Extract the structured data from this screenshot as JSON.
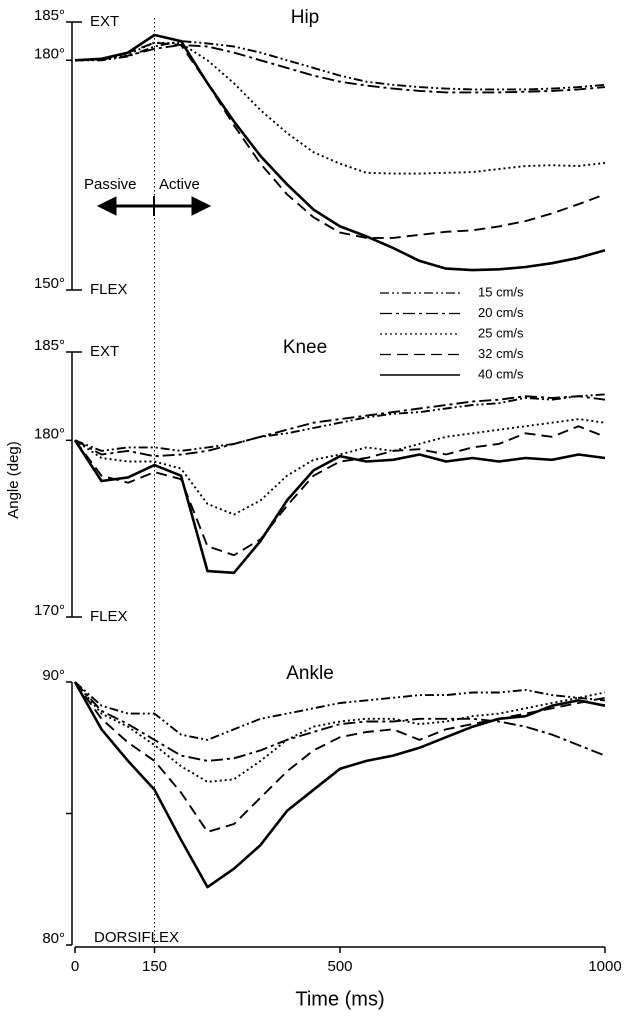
{
  "vline": 150,
  "chart_data": [
    {
      "type": "line",
      "title": "Hip",
      "top_label": "EXT",
      "bottom_label": "FLEX",
      "annotations": [
        "Passive",
        "Active"
      ],
      "x": [
        0,
        50,
        100,
        150,
        200,
        250,
        300,
        350,
        400,
        450,
        500,
        550,
        600,
        650,
        700,
        750,
        800,
        850,
        900,
        950,
        1000
      ],
      "xlim": [
        0,
        1000
      ],
      "ylim": [
        150,
        185
      ],
      "yticks": [
        {
          "value": 150,
          "label": "150°"
        },
        {
          "value": 180,
          "label": "180°"
        },
        {
          "value": 185,
          "label": "185°"
        }
      ],
      "series": [
        {
          "name": "15 cm/s",
          "color": "#000",
          "dash": "9 3 2 3 2 3",
          "values": [
            180,
            180,
            180.5,
            181.8,
            182.5,
            182.2,
            181.8,
            181,
            180,
            179,
            178,
            177.2,
            176.8,
            176.5,
            176.3,
            176.2,
            176.2,
            176.2,
            176.3,
            176.5,
            176.8
          ]
        },
        {
          "name": "20 cm/s",
          "color": "#000",
          "dash": "12 4 3 4",
          "values": [
            180,
            180.1,
            180.6,
            181.5,
            182,
            181.8,
            181,
            180,
            179,
            178,
            177.2,
            176.7,
            176.3,
            176,
            175.8,
            175.8,
            175.8,
            175.9,
            176,
            176.2,
            176.5
          ]
        },
        {
          "name": "25 cm/s",
          "color": "#000",
          "dash": "2 3",
          "values": [
            180,
            180.1,
            180.8,
            182.3,
            182.2,
            180,
            177,
            173.5,
            170.5,
            168,
            166.5,
            165.3,
            165.2,
            165.2,
            165.3,
            165.4,
            165.8,
            166.2,
            166.3,
            166.2,
            166.6
          ]
        },
        {
          "name": "32 cm/s",
          "color": "#000",
          "dash": "11 6",
          "values": [
            180,
            180.2,
            181,
            182.3,
            182,
            177,
            171.5,
            166.5,
            162.5,
            159.5,
            157.5,
            156.8,
            156.8,
            157.2,
            157.6,
            157.8,
            158.3,
            159,
            160,
            161.2,
            162.5
          ]
        },
        {
          "name": "40 cm/s",
          "color": "#000",
          "dash": "none",
          "values": [
            180,
            180.2,
            181,
            183.3,
            182.5,
            177,
            172,
            167.5,
            163.8,
            160.5,
            158.3,
            157,
            155.5,
            153.8,
            152.8,
            152.6,
            152.7,
            153,
            153.5,
            154.2,
            155.2
          ]
        }
      ]
    },
    {
      "type": "line",
      "title": "Knee",
      "top_label": "EXT",
      "bottom_label": "FLEX",
      "ylabel": "Angle (deg)",
      "x": [
        0,
        50,
        100,
        150,
        200,
        250,
        300,
        350,
        400,
        450,
        500,
        550,
        600,
        650,
        700,
        750,
        800,
        850,
        900,
        950,
        1000
      ],
      "xlim": [
        0,
        1000
      ],
      "ylim": [
        170,
        185
      ],
      "yticks": [
        {
          "value": 170,
          "label": "170°"
        },
        {
          "value": 180,
          "label": "180°"
        },
        {
          "value": 185,
          "label": "185°"
        }
      ],
      "series": [
        {
          "color": "#000",
          "dash": "9 3 2 3 2 3",
          "values": [
            180,
            179.4,
            179.6,
            179.6,
            179.4,
            179.6,
            179.8,
            180.2,
            180.4,
            180.7,
            181,
            181.3,
            181.5,
            181.6,
            181.8,
            182,
            182.1,
            182.4,
            182.3,
            182.5,
            182.6
          ]
        },
        {
          "color": "#000",
          "dash": "12 4 3 4",
          "values": [
            180,
            179.2,
            179.4,
            179.1,
            179.2,
            179.4,
            179.8,
            180.2,
            180.6,
            181,
            181.2,
            181.4,
            181.6,
            181.8,
            182,
            182.2,
            182.3,
            182.5,
            182.4,
            182.5,
            182.3
          ]
        },
        {
          "color": "#000",
          "dash": "2 3",
          "values": [
            180,
            179,
            178.8,
            178.8,
            178.4,
            176.4,
            175.8,
            176.6,
            178,
            178.9,
            179.2,
            179.6,
            179.4,
            179.8,
            180.2,
            180.4,
            180.6,
            180.8,
            181,
            181.2,
            181
          ]
        },
        {
          "color": "#000",
          "dash": "11 6",
          "values": [
            180,
            178,
            177.6,
            178.2,
            177.8,
            174,
            173.5,
            174.4,
            176.3,
            178,
            178.8,
            179,
            179.4,
            179.5,
            179.2,
            179.6,
            179.8,
            180.4,
            180.2,
            180.8,
            180.2
          ]
        },
        {
          "color": "#000",
          "dash": "none",
          "values": [
            180,
            177.7,
            177.9,
            178.6,
            178,
            172.6,
            172.5,
            174.3,
            176.6,
            178.3,
            179.1,
            178.8,
            178.9,
            179.2,
            178.8,
            179,
            178.8,
            179,
            178.9,
            179.2,
            179
          ]
        }
      ]
    },
    {
      "type": "line",
      "title": "Ankle",
      "bottom_label": "DORSIFLEX",
      "xlabel": "Time (ms)",
      "x": [
        0,
        50,
        100,
        150,
        200,
        250,
        300,
        350,
        400,
        450,
        500,
        550,
        600,
        650,
        700,
        750,
        800,
        850,
        900,
        950,
        1000
      ],
      "xlim": [
        0,
        1000
      ],
      "ylim": [
        80,
        90
      ],
      "xticks": [
        0,
        150,
        500,
        1000
      ],
      "yticks": [
        {
          "value": 80,
          "label": "80°"
        },
        {
          "value": 90,
          "label": "90°"
        }
      ],
      "minor_yticks": [
        85
      ],
      "series": [
        {
          "color": "#000",
          "dash": "9 3 2 3 2 3",
          "values": [
            90,
            89.1,
            88.8,
            88.8,
            88,
            87.8,
            88.2,
            88.6,
            88.8,
            89,
            89.2,
            89.3,
            89.4,
            89.5,
            89.5,
            89.6,
            89.6,
            89.7,
            89.5,
            89.4,
            89.3
          ]
        },
        {
          "color": "#000",
          "dash": "12 4 3 4",
          "values": [
            90,
            88.9,
            88.4,
            87.8,
            87.2,
            87,
            87.1,
            87.4,
            87.8,
            88.1,
            88.4,
            88.5,
            88.5,
            88.6,
            88.6,
            88.6,
            88.5,
            88.3,
            88,
            87.6,
            87.2
          ]
        },
        {
          "color": "#000",
          "dash": "2 3",
          "values": [
            90,
            88.8,
            88.3,
            87.6,
            86.8,
            86.2,
            86.3,
            87,
            87.8,
            88.3,
            88.5,
            88.6,
            88.6,
            88.4,
            88.5,
            88.7,
            88.8,
            89,
            89.2,
            89.4,
            89.6
          ]
        },
        {
          "color": "#000",
          "dash": "11 6",
          "values": [
            90,
            88.6,
            87.7,
            87,
            85.8,
            84.3,
            84.6,
            85.6,
            86.6,
            87.4,
            87.9,
            88.1,
            88.2,
            87.8,
            88.2,
            88.4,
            88.6,
            88.8,
            89,
            89.2,
            89.4
          ]
        },
        {
          "color": "#000",
          "dash": "none",
          "values": [
            90,
            88.2,
            87,
            85.9,
            84,
            82.2,
            82.9,
            83.8,
            85.1,
            85.9,
            86.7,
            87,
            87.2,
            87.5,
            87.9,
            88.3,
            88.6,
            88.7,
            89.1,
            89.3,
            89.1
          ]
        }
      ]
    }
  ]
}
